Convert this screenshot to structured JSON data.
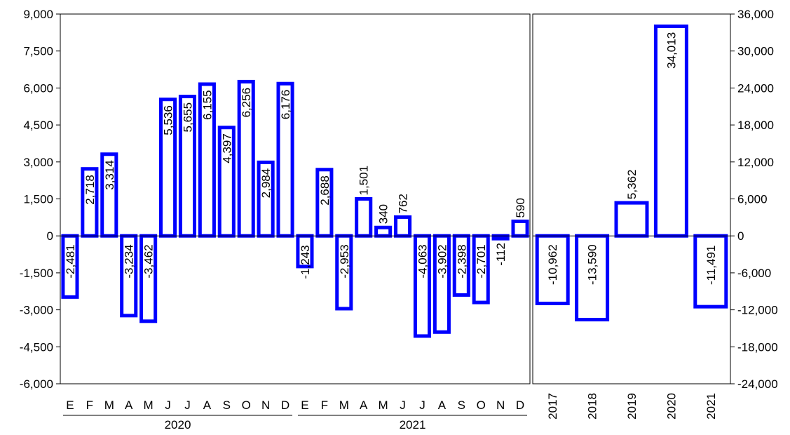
{
  "chart_data": [
    {
      "type": "bar",
      "groups": [
        "2020",
        "2021"
      ],
      "categories": [
        "E",
        "F",
        "M",
        "A",
        "M",
        "J",
        "J",
        "A",
        "S",
        "O",
        "N",
        "D",
        "E",
        "F",
        "M",
        "A",
        "M",
        "J",
        "J",
        "A",
        "S",
        "O",
        "N",
        "D"
      ],
      "values": [
        -2481,
        2718,
        3314,
        -3234,
        -3462,
        5536,
        5655,
        6155,
        4397,
        6256,
        2984,
        6176,
        -1243,
        2688,
        -2953,
        1501,
        340,
        762,
        -4063,
        -3902,
        -2398,
        -2701,
        -112,
        590
      ],
      "labels": [
        "-2,481",
        "2,718",
        "3,314",
        "-3,234",
        "-3,462",
        "5,536",
        "5,655",
        "6,155",
        "4,397",
        "6,256",
        "2,984",
        "6,176",
        "-1,243",
        "2,688",
        "-2,953",
        "1,501",
        "340",
        "762",
        "-4,063",
        "-3,902",
        "-2,398",
        "-2,701",
        "-112",
        "590"
      ],
      "ylim": [
        -6000,
        9000
      ],
      "yticks": [
        "9,000",
        "7,500",
        "6,000",
        "4,500",
        "3,000",
        "1,500",
        "0",
        "-1,500",
        "-3,000",
        "-4,500",
        "-6,000"
      ],
      "bar_color": "#0000ff"
    },
    {
      "type": "bar",
      "categories": [
        "2017",
        "2018",
        "2019",
        "2020",
        "2021"
      ],
      "values": [
        -10962,
        -13590,
        5362,
        34013,
        -11491
      ],
      "labels": [
        "-10,962",
        "-13,590",
        "5,362",
        "34,013",
        "-11,491"
      ],
      "ylim": [
        -24000,
        36000
      ],
      "yticks": [
        "36,000",
        "30,000",
        "24,000",
        "18,000",
        "12,000",
        "6,000",
        "0",
        "-6,000",
        "-12,000",
        "-18,000",
        "-24,000"
      ],
      "bar_color": "#0000ff"
    }
  ]
}
